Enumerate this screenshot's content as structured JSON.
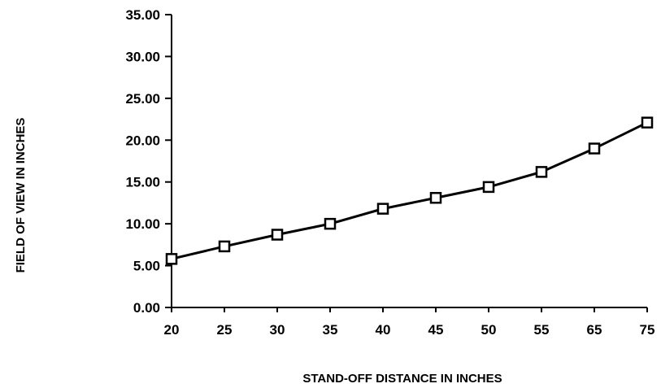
{
  "chart_data": {
    "type": "line",
    "title": "",
    "xlabel": "STAND-OFF DISTANCE IN INCHES",
    "ylabel": "FIELD OF VIEW IN INCHES",
    "categories": [
      "20",
      "25",
      "30",
      "35",
      "40",
      "45",
      "50",
      "55",
      "65",
      "75"
    ],
    "series": [
      {
        "values": [
          5.8,
          7.3,
          8.7,
          10.0,
          11.8,
          13.1,
          14.4,
          16.2,
          19.0,
          22.1
        ]
      }
    ],
    "y_ticks": [
      "0.00",
      "5.00",
      "10.00",
      "15.00",
      "20.00",
      "25.00",
      "30.00",
      "35.00"
    ],
    "ylim": [
      0,
      35
    ],
    "grid": false,
    "legend": "none",
    "marker": "open-square",
    "line_color": "#000000"
  }
}
